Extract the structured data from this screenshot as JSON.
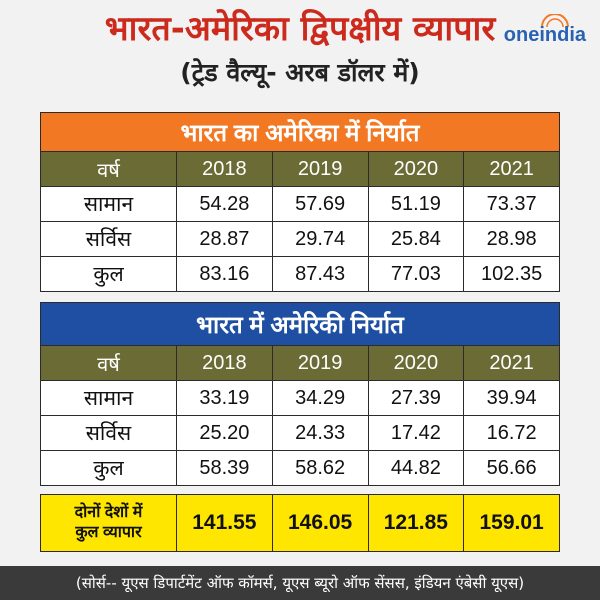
{
  "title": "भारत-अमेरिका द्विपक्षीय व्यापार",
  "subtitle": "(ट्रेड वैल्यू- अरब डॉलर में)",
  "brand": {
    "logo_text": "oneindia",
    "colors": {
      "accent": "#f27824",
      "brand": "#2a62b2"
    }
  },
  "export_table": {
    "heading": "भारत का अमेरिका में निर्यात",
    "columns": [
      "वर्ष",
      "2018",
      "2019",
      "2020",
      "2021"
    ],
    "rows": [
      {
        "label": "सामान",
        "values": [
          "54.28",
          "57.69",
          "51.19",
          "73.37"
        ]
      },
      {
        "label": "सर्विस",
        "values": [
          "28.87",
          "29.74",
          "25.84",
          "28.98"
        ]
      },
      {
        "label": "कुल",
        "values": [
          "83.16",
          "87.43",
          "77.03",
          "102.35"
        ]
      }
    ]
  },
  "import_table": {
    "heading": "भारत में अमेरिकी निर्यात",
    "columns": [
      "वर्ष",
      "2018",
      "2019",
      "2020",
      "2021"
    ],
    "rows": [
      {
        "label": "सामान",
        "values": [
          "33.19",
          "34.29",
          "27.39",
          "39.94"
        ]
      },
      {
        "label": "सर्विस",
        "values": [
          "25.20",
          "24.33",
          "17.42",
          "16.72"
        ]
      },
      {
        "label": "कुल",
        "values": [
          "58.39",
          "58.62",
          "44.82",
          "56.66"
        ]
      }
    ]
  },
  "total_trade": {
    "label_line1": "दोनों देशों में",
    "label_line2": "कुल व्यापार",
    "values": [
      "141.55",
      "146.05",
      "121.85",
      "159.01"
    ]
  },
  "source": "(सोर्स-- यूएस डिपार्टमेंट ऑफ कॉमर्स, यूएस ब्यूरो ऑफ सेंसस, इंडियन एंबेसी यूएस)"
}
